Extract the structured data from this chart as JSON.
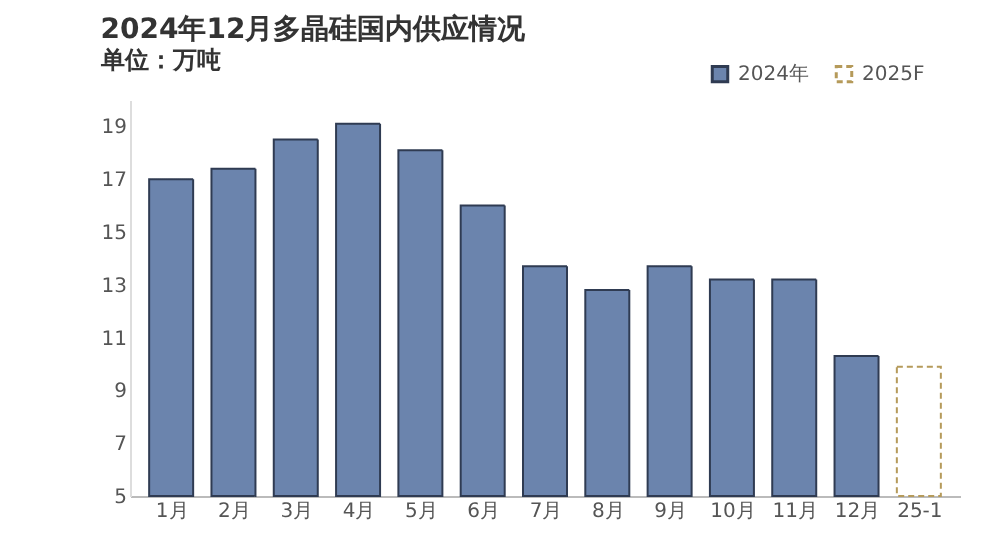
{
  "chart_data": {
    "type": "bar",
    "title": "2024年12月多晶硅国内供应情况",
    "subtitle": "单位：万吨",
    "categories": [
      "1月",
      "2月",
      "3月",
      "4月",
      "5月",
      "6月",
      "7月",
      "8月",
      "9月",
      "10月",
      "11月",
      "12月",
      "25-1"
    ],
    "series": [
      {
        "name": "2024年",
        "color": "#6b84ad",
        "values": [
          17.0,
          17.4,
          18.5,
          19.1,
          18.1,
          16.0,
          13.7,
          12.8,
          13.7,
          13.2,
          13.2,
          10.3,
          null
        ]
      },
      {
        "name": "2025F",
        "color": "#ffffff",
        "line_style": "dashed",
        "values": [
          null,
          null,
          null,
          null,
          null,
          null,
          null,
          null,
          null,
          null,
          null,
          null,
          9.9
        ]
      }
    ],
    "ylim": [
      5,
      20
    ],
    "yticks": [
      5,
      7,
      9,
      11,
      13,
      15,
      17,
      19
    ],
    "grid": false,
    "legend": "top right"
  }
}
